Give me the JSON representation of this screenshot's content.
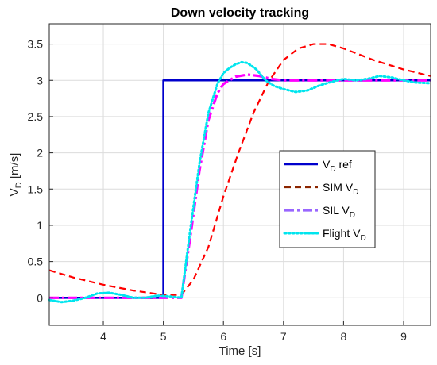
{
  "chart_data": {
    "type": "line",
    "title": "Down velocity tracking",
    "xlabel": "Time [s]",
    "ylabel_main": "V",
    "ylabel_sub": "D",
    "ylabel_unit": " [m/s]",
    "xlim": [
      3.1,
      9.45
    ],
    "ylim": [
      -0.38,
      3.78
    ],
    "xticks": [
      4,
      5,
      6,
      7,
      8,
      9
    ],
    "yticks": [
      0,
      0.5,
      1,
      1.5,
      2,
      2.5,
      3,
      3.5
    ],
    "xtick_labels": [
      "4",
      "5",
      "6",
      "7",
      "8",
      "9"
    ],
    "ytick_labels": [
      "0",
      "0.5",
      "1",
      "1.5",
      "2",
      "2.5",
      "3",
      "3.5"
    ],
    "grid": true,
    "legend_position": "right",
    "series": [
      {
        "name_main": "V",
        "name_sub": "D",
        "name_suffix": " ref",
        "color": "#0000cc",
        "style": "solid",
        "x": [
          3.1,
          5.0,
          5.0,
          9.45
        ],
        "y": [
          0,
          0,
          3.0,
          3.0
        ]
      },
      {
        "name_main": "SIM V",
        "name_sub": "D",
        "name_suffix": "",
        "color": "#ff0000",
        "legend_color": "#8b2500",
        "style": "dashed",
        "x": [
          3.1,
          3.5,
          4.0,
          4.5,
          5.0,
          5.3,
          5.5,
          5.75,
          6.0,
          6.25,
          6.5,
          6.75,
          7.0,
          7.25,
          7.5,
          7.75,
          8.0,
          8.5,
          9.0,
          9.45
        ],
        "y": [
          0.38,
          0.28,
          0.18,
          0.1,
          0.04,
          0.04,
          0.25,
          0.7,
          1.4,
          2.0,
          2.55,
          2.98,
          3.28,
          3.44,
          3.5,
          3.5,
          3.44,
          3.28,
          3.15,
          3.06
        ]
      },
      {
        "name_main": "SIL V",
        "name_sub": "D",
        "name_suffix": "",
        "color": "#ff00ff",
        "legend_color": "#9966ff",
        "style": "dashdot",
        "x": [
          3.1,
          5.0,
          5.3,
          5.45,
          5.6,
          5.75,
          5.9,
          6.0,
          6.2,
          6.4,
          6.6,
          6.8,
          7.0,
          7.5,
          8.0,
          9.0,
          9.45
        ],
        "y": [
          0,
          0,
          0,
          0.85,
          1.75,
          2.45,
          2.82,
          2.95,
          3.05,
          3.08,
          3.06,
          3.02,
          3.0,
          3.0,
          3.0,
          3.0,
          3.0
        ]
      },
      {
        "name_main": "Flight V",
        "name_sub": "D",
        "name_suffix": "",
        "color": "#00e5ee",
        "legend_color": "#00e5ee",
        "style": "dotted",
        "x": [
          3.1,
          3.3,
          3.5,
          3.7,
          3.9,
          4.1,
          4.3,
          4.5,
          4.7,
          4.9,
          5.1,
          5.3,
          5.45,
          5.6,
          5.75,
          5.9,
          6.0,
          6.1,
          6.2,
          6.3,
          6.4,
          6.55,
          6.7,
          6.85,
          7.0,
          7.2,
          7.4,
          7.6,
          7.8,
          8.0,
          8.2,
          8.4,
          8.6,
          8.8,
          9.0,
          9.2,
          9.45
        ],
        "y": [
          -0.03,
          -0.06,
          -0.04,
          0.0,
          0.06,
          0.07,
          0.04,
          0.0,
          0.0,
          0.03,
          0.02,
          0.0,
          0.95,
          1.85,
          2.55,
          2.95,
          3.1,
          3.17,
          3.22,
          3.25,
          3.24,
          3.15,
          3.0,
          2.92,
          2.88,
          2.84,
          2.86,
          2.93,
          2.98,
          3.02,
          3.0,
          3.02,
          3.06,
          3.04,
          3.0,
          2.97,
          2.96
        ]
      }
    ]
  }
}
